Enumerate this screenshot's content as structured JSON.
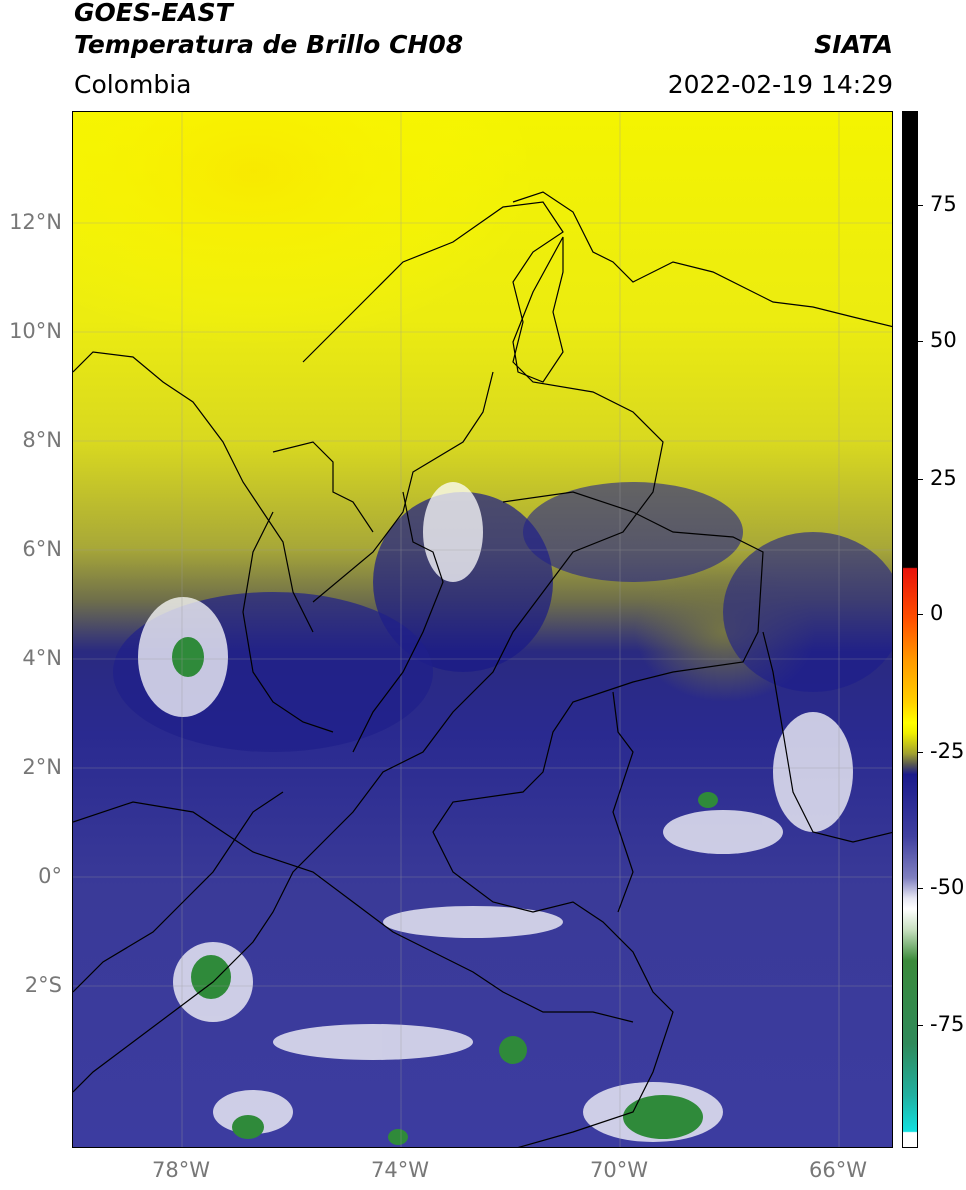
{
  "header": {
    "title_line1": "GOES-EAST",
    "title_line2": "Temperatura de Brillo CH08",
    "region": "Colombia",
    "agency": "SIATA",
    "datetime": "2022-02-19 14:29"
  },
  "map": {
    "lat_labels": [
      "12°N",
      "10°N",
      "8°N",
      "6°N",
      "4°N",
      "2°N",
      "0°",
      "2°S"
    ],
    "lon_labels": [
      "78°W",
      "74°W",
      "70°W",
      "66°W"
    ]
  },
  "colorbar": {
    "labels": [
      "75",
      "50",
      "25",
      "0",
      "-25",
      "-50",
      "-75"
    ],
    "colors": {
      "black": "#000000",
      "red": "#e8120a",
      "orange": "#ff9a00",
      "yellow": "#ffff00",
      "olive": "#8a8a2a",
      "navy": "#1a1a8c",
      "purple": "#6a6ab0",
      "white": "#ffffff",
      "green": "#2f8a3a",
      "cyan": "#12e0e0"
    }
  }
}
